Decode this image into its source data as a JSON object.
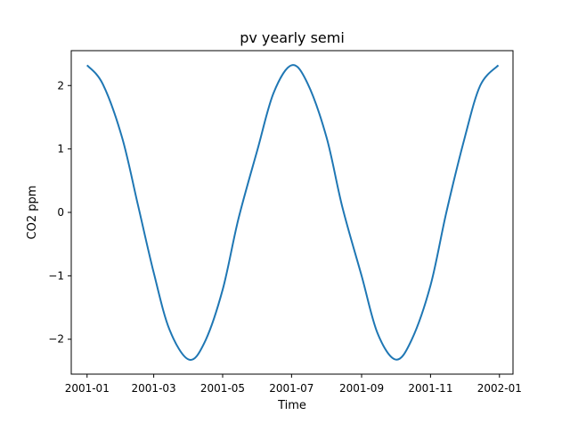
{
  "chart_data": {
    "type": "line",
    "title": "pv yearly semi",
    "xlabel": "Time",
    "ylabel": "CO2 ppm",
    "xlim": [
      "2000-12-18",
      "2002-01-13"
    ],
    "ylim": [
      -2.55,
      2.55
    ],
    "x_ticks": [
      "2001-01-01",
      "2001-03-01",
      "2001-05-01",
      "2001-07-01",
      "2001-09-01",
      "2001-11-01",
      "2002-01-01"
    ],
    "x_tick_labels": [
      "2001-01",
      "2001-03",
      "2001-05",
      "2001-07",
      "2001-09",
      "2001-11",
      "2002-01"
    ],
    "y_ticks": [
      -2,
      -1,
      0,
      1,
      2
    ],
    "y_tick_labels": [
      "−2",
      "−1",
      "0",
      "1",
      "2"
    ],
    "grid": false,
    "series": [
      {
        "color": "#1f77b4",
        "x": [
          "2001-01-01",
          "2001-01-15",
          "2001-02-01",
          "2001-02-15",
          "2001-03-01",
          "2001-03-15",
          "2001-04-01",
          "2001-04-15",
          "2001-05-01",
          "2001-05-15",
          "2001-06-01",
          "2001-06-15",
          "2001-07-01",
          "2001-07-15",
          "2001-08-01",
          "2001-08-15",
          "2001-09-01",
          "2001-09-15",
          "2001-10-01",
          "2001-10-15",
          "2001-11-01",
          "2001-11-15",
          "2001-12-01",
          "2001-12-15",
          "2001-12-31"
        ],
        "values": [
          2.32,
          2.02,
          1.18,
          0.12,
          -0.95,
          -1.85,
          -2.32,
          -2.05,
          -1.22,
          -0.1,
          1.0,
          1.88,
          2.32,
          2.04,
          1.18,
          0.08,
          -1.0,
          -1.9,
          -2.32,
          -2.02,
          -1.15,
          0.0,
          1.16,
          2.0,
          2.32
        ]
      }
    ]
  }
}
